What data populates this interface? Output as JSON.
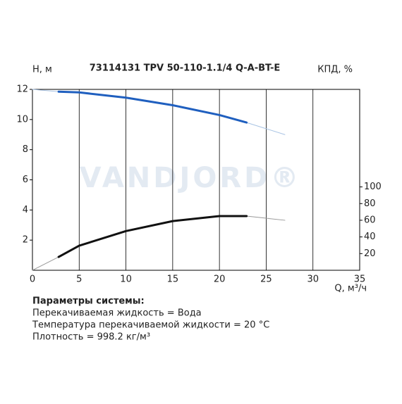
{
  "chart_data": {
    "type": "line",
    "title": "73114131 TPV 50-110-1.1/4 Q-A-BT-E",
    "y_label": "H, м",
    "y2_label": "КПД, %",
    "x_label": "Q, м³/ч",
    "watermark": "VANDJORD®",
    "xlim": [
      0,
      35
    ],
    "xticks": [
      0,
      5,
      10,
      15,
      20,
      25,
      30,
      35
    ],
    "ylim": [
      0,
      12
    ],
    "yticks": [
      2,
      4,
      6,
      8,
      10,
      12
    ],
    "y2lim": [
      0,
      217
    ],
    "y2ticks": [
      20,
      40,
      60,
      80,
      100
    ],
    "grid": "x",
    "series": [
      {
        "color": "#a9c4e4",
        "width": 1,
        "x": [
          0,
          2.8,
          5,
          10,
          15,
          20,
          22.9,
          27
        ],
        "values": [
          12.0,
          11.85,
          11.8,
          11.45,
          10.95,
          10.3,
          9.8,
          9.0
        ]
      },
      {
        "color": "#1f5fbf",
        "width": 3,
        "x": [
          2.8,
          5,
          10,
          15,
          20,
          22.9
        ],
        "values": [
          11.85,
          11.8,
          11.45,
          10.95,
          10.3,
          9.8
        ]
      },
      {
        "color": "#999999",
        "width": 1,
        "axis": "y2",
        "x": [
          0,
          2.8,
          5,
          10,
          15,
          20,
          22.9,
          27
        ],
        "values": [
          0,
          16,
          29.5,
          47,
          59,
          65,
          65,
          60
        ]
      },
      {
        "color": "#111111",
        "width": 3,
        "axis": "y2",
        "x": [
          2.8,
          5,
          10,
          15,
          20,
          22.9
        ],
        "values": [
          16,
          29.5,
          47,
          59,
          65,
          65
        ]
      }
    ]
  },
  "parameters": {
    "heading": "Параметры системы:",
    "lines": [
      "Перекачиваемая жидкость = Вода",
      "Температура перекачиваемой жидкости = 20 °C",
      "Плотность = 998.2 кг/м³"
    ]
  }
}
